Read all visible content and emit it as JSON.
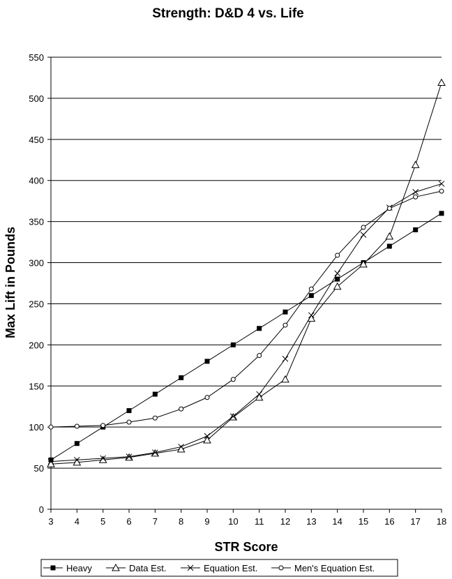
{
  "chart_data": {
    "type": "line",
    "title": "Strength: D&D 4 vs. Life",
    "xlabel": "STR Score",
    "ylabel": "Max Lift in Pounds",
    "x": [
      3,
      4,
      5,
      6,
      7,
      8,
      9,
      10,
      11,
      12,
      13,
      14,
      15,
      16,
      17,
      18
    ],
    "ylim": [
      0,
      550
    ],
    "yticks": [
      0,
      50,
      100,
      150,
      200,
      250,
      300,
      350,
      400,
      450,
      500,
      550
    ],
    "grid": "horizontal",
    "legend_position": "bottom",
    "series": [
      {
        "name": "Heavy",
        "marker": "filled-square",
        "values": [
          60,
          80,
          100,
          120,
          140,
          160,
          180,
          200,
          220,
          240,
          260,
          280,
          300,
          320,
          340,
          360
        ]
      },
      {
        "name": "Data Est.",
        "marker": "open-triangle",
        "values": [
          55,
          57,
          60,
          63,
          68,
          73,
          84,
          112,
          136,
          158,
          232,
          271,
          298,
          332,
          419,
          519
        ]
      },
      {
        "name": "Equation Est.",
        "marker": "x",
        "values": [
          58,
          60,
          62,
          64,
          69,
          76,
          89,
          113,
          140,
          183,
          236,
          287,
          334,
          367,
          386,
          396
        ]
      },
      {
        "name": "Men's Equation Est.",
        "marker": "open-circle",
        "values": [
          100,
          101,
          102,
          106,
          111,
          122,
          136,
          158,
          187,
          224,
          268,
          309,
          343,
          366,
          380,
          387
        ]
      }
    ]
  }
}
